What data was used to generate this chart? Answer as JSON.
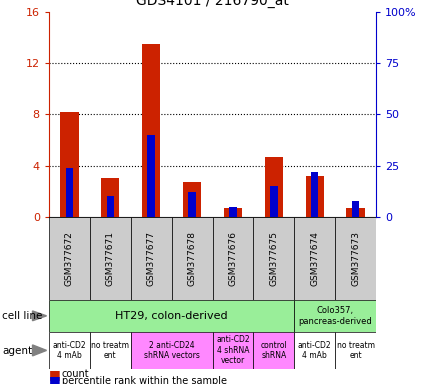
{
  "title": "GDS4101 / 216790_at",
  "samples": [
    "GSM377672",
    "GSM377671",
    "GSM377677",
    "GSM377678",
    "GSM377676",
    "GSM377675",
    "GSM377674",
    "GSM377673"
  ],
  "count_values": [
    8.2,
    3.0,
    13.5,
    2.7,
    0.7,
    4.7,
    3.2,
    0.7
  ],
  "percentile_values": [
    24,
    10,
    40,
    12,
    5,
    15,
    22,
    8
  ],
  "ylim_left": [
    0,
    16
  ],
  "yticks_left": [
    0,
    4,
    8,
    12,
    16
  ],
  "ytick_labels_left": [
    "0",
    "4",
    "8",
    "12",
    "16"
  ],
  "ytick_labels_right": [
    "0",
    "25",
    "50",
    "75",
    "100%"
  ],
  "bar_color_red": "#cc2200",
  "bar_color_blue": "#0000cc",
  "red_bar_width": 0.45,
  "blue_bar_width": 0.18,
  "tick_label_color_left": "#cc2200",
  "tick_label_color_right": "#0000cc",
  "cell_line_ht29_color": "#99ee99",
  "cell_line_colo_color": "#99ee99",
  "agent_white_color": "#ffffff",
  "agent_pink_color": "#ff88ff",
  "agent_light_pink_color": "#ffaaff"
}
